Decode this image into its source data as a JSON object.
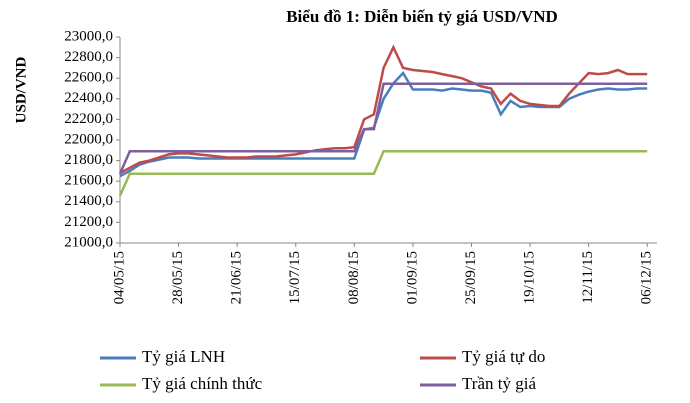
{
  "chart_data": {
    "type": "line",
    "title": "Biểu đồ 1: Diễn biến tỷ giá USD/VND",
    "y_label": "USD/VND",
    "x": [
      "04/05/15",
      "08/05/15",
      "12/05/15",
      "16/05/15",
      "20/05/15",
      "24/05/15",
      "28/05/15",
      "01/06/15",
      "05/06/15",
      "09/06/15",
      "13/06/15",
      "17/06/15",
      "21/06/15",
      "25/06/15",
      "29/06/15",
      "03/07/15",
      "07/07/15",
      "11/07/15",
      "15/07/15",
      "19/07/15",
      "23/07/15",
      "27/07/15",
      "31/07/15",
      "04/08/15",
      "08/08/15",
      "12/08/15",
      "16/08/15",
      "20/08/15",
      "24/08/15",
      "28/08/15",
      "01/09/15",
      "05/09/15",
      "09/09/15",
      "13/09/15",
      "17/09/15",
      "21/09/15",
      "25/09/15",
      "29/09/15",
      "03/10/15",
      "07/10/15",
      "11/10/15",
      "15/10/15",
      "19/10/15",
      "23/10/15",
      "27/10/15",
      "31/10/15",
      "04/11/15",
      "08/11/15",
      "12/11/15",
      "16/11/15",
      "20/11/15",
      "24/11/15",
      "28/11/15",
      "02/12/15",
      "06/12/15"
    ],
    "xlim": [
      "04/05/15",
      "10/12/15"
    ],
    "xticks": [
      "04/05/15",
      "28/05/15",
      "21/06/15",
      "15/07/15",
      "08/08/15",
      "01/09/15",
      "25/09/15",
      "19/10/15",
      "12/11/15",
      "06/12/15"
    ],
    "ylim": [
      21000,
      23000
    ],
    "yticks": [
      {
        "value": 21000,
        "label": "21000,0"
      },
      {
        "value": 21200,
        "label": "21200,0"
      },
      {
        "value": 21400,
        "label": "21400,0"
      },
      {
        "value": 21600,
        "label": "21600,0"
      },
      {
        "value": 21800,
        "label": "21800,0"
      },
      {
        "value": 22000,
        "label": "22000,0"
      },
      {
        "value": 22200,
        "label": "22200,0"
      },
      {
        "value": 22400,
        "label": "22400,0"
      },
      {
        "value": 22600,
        "label": "22600,0"
      },
      {
        "value": 22800,
        "label": "22800,0"
      },
      {
        "value": 23000,
        "label": "23000,0"
      }
    ],
    "series": [
      {
        "name": "Tỷ giá LNH",
        "color": "#4a7ebb",
        "values": [
          21650,
          21700,
          21760,
          21790,
          21810,
          21830,
          21830,
          21830,
          21820,
          21820,
          21820,
          21820,
          21820,
          21820,
          21820,
          21820,
          21820,
          21820,
          21820,
          21820,
          21820,
          21820,
          21820,
          21820,
          21820,
          22100,
          22120,
          22400,
          22550,
          22650,
          22490,
          22490,
          22490,
          22480,
          22500,
          22490,
          22480,
          22480,
          22460,
          22250,
          22380,
          22320,
          22330,
          22320,
          22320,
          22320,
          22400,
          22440,
          22470,
          22490,
          22500,
          22490,
          22490,
          22500,
          22500
        ]
      },
      {
        "name": "Tỷ giá tự do",
        "color": "#be4b48",
        "values": [
          21680,
          21730,
          21780,
          21800,
          21830,
          21860,
          21870,
          21870,
          21860,
          21850,
          21840,
          21830,
          21830,
          21830,
          21840,
          21840,
          21840,
          21850,
          21860,
          21880,
          21900,
          21910,
          21920,
          21920,
          21930,
          22200,
          22250,
          22700,
          22900,
          22700,
          22680,
          22670,
          22660,
          22640,
          22620,
          22600,
          22560,
          22520,
          22500,
          22350,
          22450,
          22380,
          22350,
          22340,
          22330,
          22330,
          22450,
          22550,
          22650,
          22640,
          22650,
          22680,
          22640,
          22640,
          22640
        ]
      },
      {
        "name": "Tỷ giá chính thức",
        "color": "#98b954",
        "values": [
          21458,
          21673,
          21673,
          21673,
          21673,
          21673,
          21673,
          21673,
          21673,
          21673,
          21673,
          21673,
          21673,
          21673,
          21673,
          21673,
          21673,
          21673,
          21673,
          21673,
          21673,
          21673,
          21673,
          21673,
          21673,
          21673,
          21673,
          21890,
          21890,
          21890,
          21890,
          21890,
          21890,
          21890,
          21890,
          21890,
          21890,
          21890,
          21890,
          21890,
          21890,
          21890,
          21890,
          21890,
          21890,
          21890,
          21890,
          21890,
          21890,
          21890,
          21890,
          21890,
          21890,
          21890,
          21890
        ]
      },
      {
        "name": "Trần tỷ giá",
        "color": "#7d5fa0",
        "values": [
          21673,
          21890,
          21890,
          21890,
          21890,
          21890,
          21890,
          21890,
          21890,
          21890,
          21890,
          21890,
          21890,
          21890,
          21890,
          21890,
          21890,
          21890,
          21890,
          21890,
          21890,
          21890,
          21890,
          21890,
          21890,
          22106,
          22106,
          22547,
          22547,
          22547,
          22547,
          22547,
          22547,
          22547,
          22547,
          22547,
          22547,
          22547,
          22547,
          22547,
          22547,
          22547,
          22547,
          22547,
          22547,
          22547,
          22547,
          22547,
          22547,
          22547,
          22547,
          22547,
          22547,
          22547,
          22547
        ]
      }
    ]
  }
}
